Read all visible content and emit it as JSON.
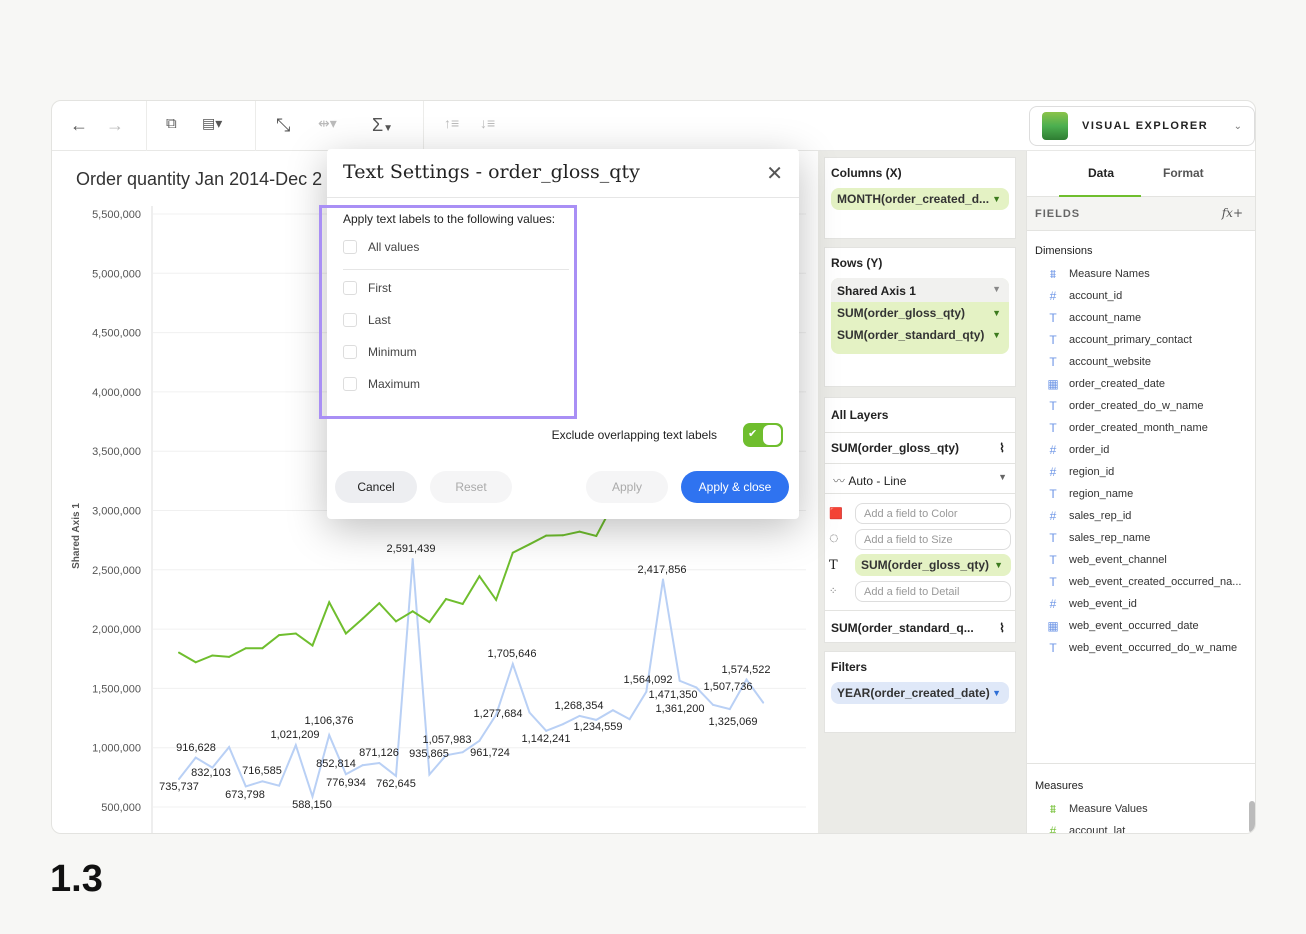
{
  "toolbar": {
    "icons": [
      "arrow-left-icon",
      "arrow-right-icon",
      "add-sheet-icon",
      "clear-chart-icon",
      "swap-axes-icon",
      "fit-width-icon",
      "aggregate-sigma-icon",
      "sort-ascending-icon",
      "sort-descending-icon"
    ],
    "sigma": "Σ",
    "app_switcher": "VISUAL EXPLORER"
  },
  "chart": {
    "title": "Order quantity Jan 2014-Dec 2"
  },
  "chart_data": {
    "type": "line",
    "ylabel": "Shared Axis 1",
    "ylim": [
      500000,
      5500000
    ],
    "grid": true,
    "yticks": [
      "5,500,000",
      "5,000,000",
      "4,500,000",
      "4,000,000",
      "3,500,000",
      "3,000,000",
      "2,500,000",
      "2,000,000",
      "1,500,000",
      "1,000,000",
      "500,000"
    ],
    "ytick_values": [
      5500000,
      5000000,
      4500000,
      4000000,
      3500000,
      3000000,
      2500000,
      2000000,
      1500000,
      1000000,
      500000
    ],
    "x_count": 36,
    "series": [
      {
        "key": "SUM(order_gloss_qty)",
        "color": "#b9d0f5",
        "values": [
          735737,
          916628,
          832103,
          1005000,
          673798,
          716585,
          680000,
          1021209,
          588150,
          1106376,
          776934,
          852814,
          871126,
          762645,
          2591439,
          774000,
          935865,
          961724,
          1057983,
          1277684,
          1705646,
          1297000,
          1142241,
          1198000,
          1268354,
          1234559,
          1316000,
          1240000,
          1471350,
          2417856,
          1564092,
          1507736,
          1361200,
          1325069,
          1574522,
          1380000
        ],
        "labeled": [
          1,
          1,
          1,
          0,
          1,
          1,
          0,
          1,
          1,
          1,
          1,
          1,
          1,
          1,
          1,
          0,
          1,
          1,
          1,
          1,
          1,
          0,
          1,
          0,
          1,
          1,
          0,
          0,
          1,
          1,
          1,
          1,
          1,
          1,
          1,
          0
        ],
        "label_text": [
          "735,737",
          "916,628",
          "832,103",
          "",
          "673,798",
          "716,585",
          "",
          "1,021,209",
          "588,150",
          "1,106,376",
          "776,934",
          "852,814",
          "871,126",
          "762,645",
          "2,591,439",
          "",
          "935,865",
          "961,724",
          "1,057,983",
          "1,277,684",
          "1,705,646",
          "",
          "1,142,241",
          "",
          "1,268,354",
          "1,234,559",
          "",
          "",
          "1,471,350",
          "2,417,856",
          "1,564,092",
          "1,507,736",
          "1,361,200",
          "1,325,069",
          "1,574,522",
          ""
        ]
      },
      {
        "key": "SUM(order_standard_qty)",
        "color": "#6fbe2e",
        "values": [
          1802000,
          1720000,
          1777000,
          1766000,
          1839000,
          1839000,
          1949000,
          1963000,
          1862000,
          2226000,
          1963000,
          2088000,
          2218000,
          2065000,
          2150000,
          2059000,
          2254000,
          2212000,
          2446000,
          2246000,
          2644000,
          2715000,
          2788000,
          2791000,
          2822000,
          2785000,
          3050000,
          null,
          null,
          null,
          null,
          null,
          null,
          null,
          null,
          null
        ]
      }
    ]
  },
  "mid": {
    "columns_title": "Columns (X)",
    "columns_pill": "MONTH(order_created_d...",
    "rows_title": "Rows (Y)",
    "shared_axis": "Shared Axis 1",
    "rows_pills": [
      "SUM(order_gloss_qty)",
      "SUM(order_standard_qty)"
    ],
    "all_layers": "All Layers",
    "layer1": "SUM(order_gloss_qty)",
    "mark_type": "Auto - Line",
    "color_ph": "Add a field to Color",
    "size_ph": "Add a field to Size",
    "text_pill": "SUM(order_gloss_qty)",
    "detail_ph": "Add a field to Detail",
    "layer2": "SUM(order_standard_q...",
    "filters_title": "Filters",
    "filter_pill": "YEAR(order_created_date)"
  },
  "right": {
    "tabs": [
      "Data",
      "Format"
    ],
    "fields_label": "FIELDS",
    "fx": "fx+",
    "dimensions_title": "Dimensions",
    "dimensions": [
      {
        "name": "Measure Names",
        "type": "measure-names"
      },
      {
        "name": "account_id",
        "type": "number"
      },
      {
        "name": "account_name",
        "type": "text"
      },
      {
        "name": "account_primary_contact",
        "type": "text"
      },
      {
        "name": "account_website",
        "type": "text"
      },
      {
        "name": "order_created_date",
        "type": "date"
      },
      {
        "name": "order_created_do_w_name",
        "type": "text"
      },
      {
        "name": "order_created_month_name",
        "type": "text"
      },
      {
        "name": "order_id",
        "type": "number"
      },
      {
        "name": "region_id",
        "type": "number"
      },
      {
        "name": "region_name",
        "type": "text"
      },
      {
        "name": "sales_rep_id",
        "type": "number"
      },
      {
        "name": "sales_rep_name",
        "type": "text"
      },
      {
        "name": "web_event_channel",
        "type": "text"
      },
      {
        "name": "web_event_created_occurred_na...",
        "type": "text"
      },
      {
        "name": "web_event_id",
        "type": "number"
      },
      {
        "name": "web_event_occurred_date",
        "type": "date"
      },
      {
        "name": "web_event_occurred_do_w_name",
        "type": "text"
      }
    ],
    "measures_title": "Measures",
    "measures": [
      {
        "name": "Measure Values",
        "type": "measure-values"
      },
      {
        "name": "account_lat",
        "type": "number"
      }
    ]
  },
  "modal": {
    "title": "Text Settings - order_gloss_qty",
    "intro": "Apply text labels to the following values:",
    "options": [
      {
        "label": "All values",
        "checked": false
      },
      {
        "label": "First",
        "checked": false
      },
      {
        "label": "Last",
        "checked": false
      },
      {
        "label": "Minimum",
        "checked": false
      },
      {
        "label": "Maximum",
        "checked": false
      }
    ],
    "exclude_label": "Exclude overlapping text labels",
    "exclude_on": true,
    "cancel": "Cancel",
    "reset": "Reset",
    "apply": "Apply",
    "apply_close": "Apply & close",
    "accent": "#2f73f0",
    "highlight": "#a98ff5"
  },
  "footer": {
    "version": "1.3"
  }
}
